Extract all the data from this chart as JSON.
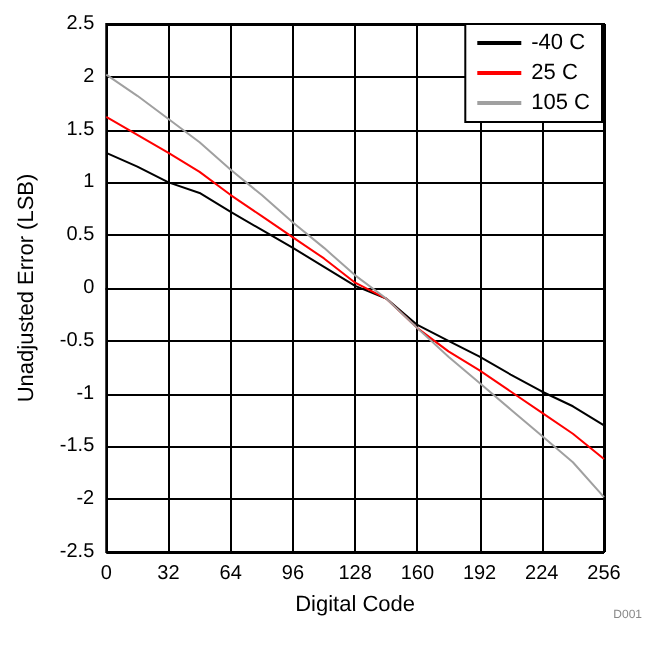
{
  "chart_data": {
    "type": "line",
    "xlabel": "Digital Code",
    "ylabel": "Unadjusted Error (LSB)",
    "annotations": [
      "D001"
    ],
    "x": [
      0,
      16,
      32,
      48,
      64,
      80,
      96,
      112,
      128,
      144,
      160,
      176,
      192,
      208,
      224,
      240,
      256
    ],
    "series": [
      {
        "name": "-40 C",
        "color": "#000000",
        "values": [
          1.28,
          1.15,
          1.0,
          0.9,
          0.72,
          0.55,
          0.38,
          0.2,
          0.02,
          -0.1,
          -0.35,
          -0.5,
          -0.65,
          -0.82,
          -0.98,
          -1.12,
          -1.3
        ]
      },
      {
        "name": "25 C",
        "color": "#ff0000",
        "values": [
          1.62,
          1.45,
          1.28,
          1.1,
          0.88,
          0.68,
          0.48,
          0.28,
          0.05,
          -0.1,
          -0.38,
          -0.6,
          -0.78,
          -0.98,
          -1.18,
          -1.38,
          -1.62
        ]
      },
      {
        "name": "105 C",
        "color": "#a0a0a0",
        "values": [
          2.02,
          1.82,
          1.6,
          1.38,
          1.12,
          0.88,
          0.62,
          0.38,
          0.12,
          -0.1,
          -0.38,
          -0.65,
          -0.9,
          -1.15,
          -1.4,
          -1.65,
          -1.98
        ]
      }
    ],
    "xlim": [
      0,
      256
    ],
    "xticks": [
      0,
      32,
      64,
      96,
      128,
      160,
      192,
      224,
      256
    ],
    "ylim": [
      -2.5,
      2.5
    ],
    "yticks": [
      -2.5,
      -2,
      -1.5,
      -1,
      -0.5,
      0,
      0.5,
      1,
      1.5,
      2,
      2.5
    ],
    "grid": true,
    "legend": "top right",
    "marker": "none",
    "line_style": "solid"
  }
}
